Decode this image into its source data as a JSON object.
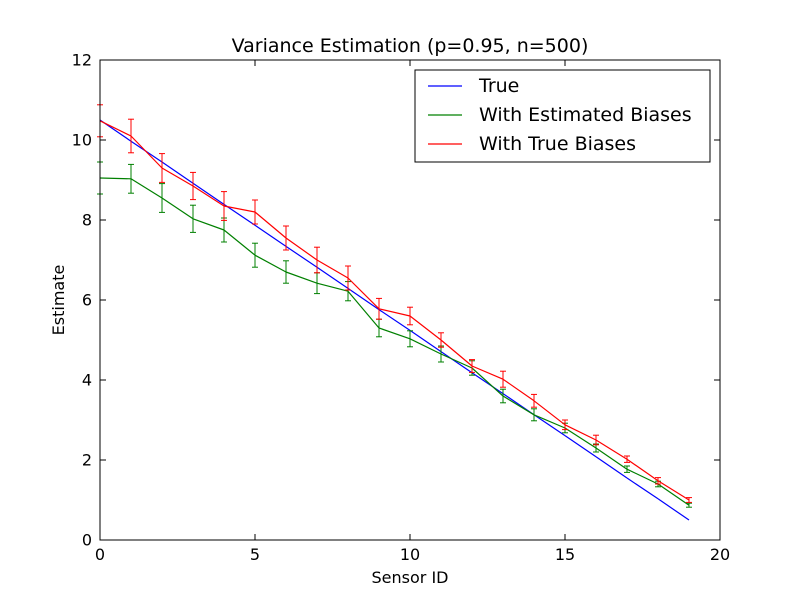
{
  "chart_data": {
    "type": "line",
    "title": "Variance Estimation (p=0.95, n=500)",
    "xlabel": "Sensor ID",
    "ylabel": "Estimate",
    "xlim": [
      0,
      20
    ],
    "ylim": [
      0,
      12
    ],
    "x_ticks": [
      "0",
      "5",
      "10",
      "15",
      "20"
    ],
    "y_ticks": [
      "0",
      "2",
      "4",
      "6",
      "8",
      "10",
      "12"
    ],
    "grid": false,
    "legend_position": "top-right",
    "x": [
      0,
      1,
      2,
      3,
      4,
      5,
      6,
      7,
      8,
      9,
      10,
      11,
      12,
      13,
      14,
      15,
      16,
      17,
      18,
      19
    ],
    "series": [
      {
        "name": "True",
        "color": "#0000ff",
        "values": [
          10.5,
          9.97,
          9.45,
          8.92,
          8.39,
          7.87,
          7.34,
          6.82,
          6.29,
          5.76,
          5.24,
          4.71,
          4.18,
          3.66,
          3.13,
          2.61,
          2.08,
          1.55,
          1.03,
          0.5
        ]
      },
      {
        "name": "With Estimated Biases",
        "color": "#008000",
        "values": [
          9.05,
          9.03,
          8.55,
          8.03,
          7.75,
          7.12,
          6.7,
          6.42,
          6.22,
          5.3,
          5.03,
          4.65,
          4.3,
          3.6,
          3.13,
          2.8,
          2.3,
          1.77,
          1.4,
          0.87
        ],
        "errors": [
          0.4,
          0.36,
          0.36,
          0.34,
          0.3,
          0.3,
          0.28,
          0.26,
          0.24,
          0.22,
          0.2,
          0.2,
          0.18,
          0.17,
          0.15,
          0.12,
          0.1,
          0.08,
          0.07,
          0.05
        ]
      },
      {
        "name": "With True Biases",
        "color": "#ff0000",
        "values": [
          10.48,
          10.1,
          9.3,
          8.85,
          8.35,
          8.2,
          7.55,
          7.0,
          6.55,
          5.78,
          5.6,
          5.0,
          4.35,
          4.02,
          3.48,
          2.88,
          2.5,
          2.02,
          1.48,
          1.0
        ],
        "errors": [
          0.4,
          0.42,
          0.36,
          0.34,
          0.36,
          0.3,
          0.3,
          0.32,
          0.3,
          0.26,
          0.22,
          0.18,
          0.16,
          0.2,
          0.16,
          0.12,
          0.12,
          0.08,
          0.08,
          0.06
        ]
      }
    ]
  }
}
